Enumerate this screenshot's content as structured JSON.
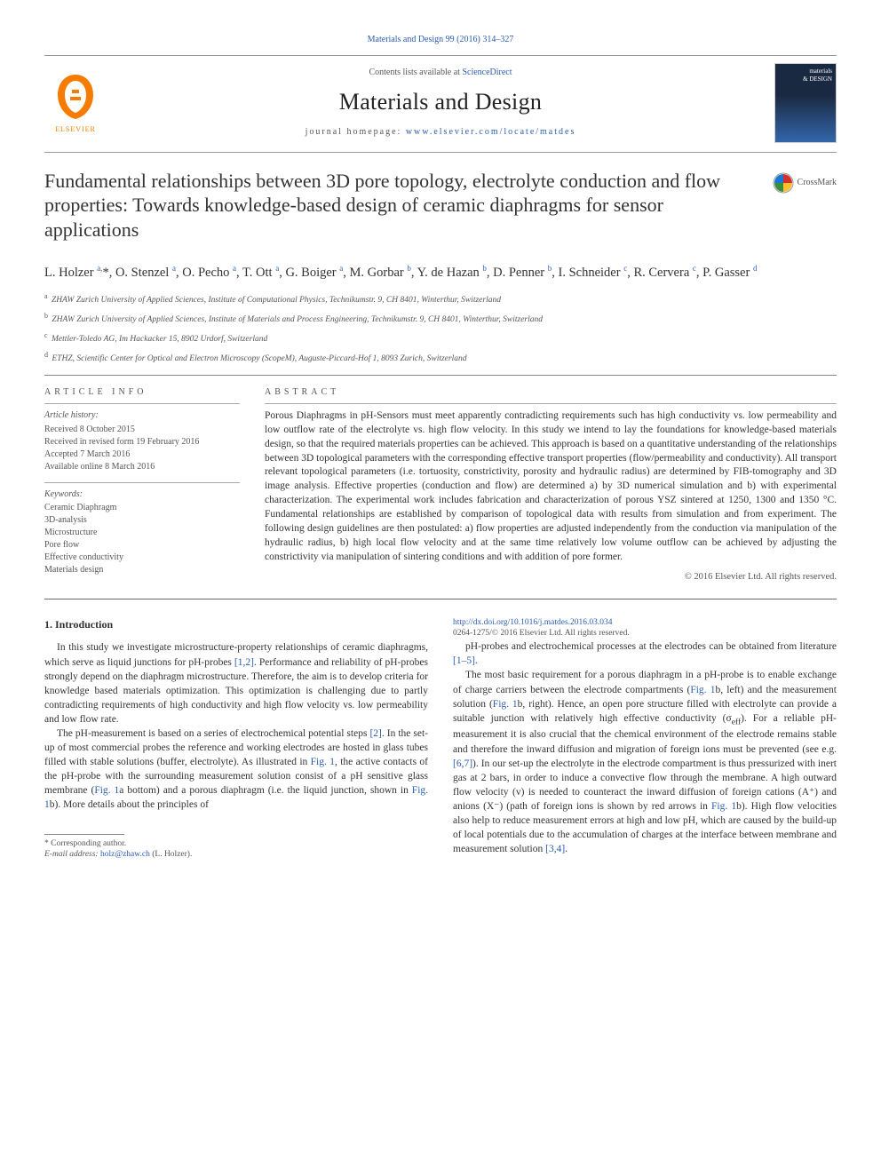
{
  "top_link": "Materials and Design 99 (2016) 314–327",
  "header": {
    "contents_prefix": "Contents lists available at ",
    "contents_link": "ScienceDirect",
    "journal": "Materials and Design",
    "homepage_prefix": "journal homepage: ",
    "homepage_url": "www.elsevier.com/locate/matdes",
    "elsevier": "ELSEVIER",
    "cover_label_top": "materials",
    "cover_label_bot": "& DESIGN"
  },
  "crossmark": "CrossMark",
  "title": "Fundamental relationships between 3D pore topology, electrolyte conduction and flow properties: Towards knowledge-based design of ceramic diaphragms for sensor applications",
  "authors_html": "L. Holzer <sup>a,</sup><span class='ast'>*</span>, O. Stenzel <sup>a</sup>, O. Pecho <sup>a</sup>, T. Ott <sup>a</sup>, G. Boiger <sup>a</sup>, M. Gorbar <sup>b</sup>, Y. de Hazan <sup>b</sup>, D. Penner <sup>b</sup>, I. Schneider <sup>c</sup>, R. Cervera <sup>c</sup>, P. Gasser <sup>d</sup>",
  "affiliations": [
    {
      "sup": "a",
      "text": "ZHAW Zurich University of Applied Sciences, Institute of Computational Physics, Technikumstr. 9, CH 8401, Winterthur, Switzerland"
    },
    {
      "sup": "b",
      "text": "ZHAW Zurich University of Applied Sciences, Institute of Materials and Process Engineering, Technikumstr. 9, CH 8401, Winterthur, Switzerland"
    },
    {
      "sup": "c",
      "text": "Mettler-Toledo AG, Im Hackacker 15, 8902 Urdorf, Switzerland"
    },
    {
      "sup": "d",
      "text": "ETHZ, Scientific Center for Optical and Electron Microscopy (ScopeM), Auguste-Piccard-Hof 1, 8093 Zurich, Switzerland"
    }
  ],
  "article_info": {
    "head": "article info",
    "history_label": "Article history:",
    "history": [
      "Received 8 October 2015",
      "Received in revised form 19 February 2016",
      "Accepted 7 March 2016",
      "Available online 8 March 2016"
    ],
    "keywords_label": "Keywords:",
    "keywords": [
      "Ceramic Diaphragm",
      "3D-analysis",
      "Microstructure",
      "Pore flow",
      "Effective conductivity",
      "Materials design"
    ]
  },
  "abstract": {
    "head": "abstract",
    "text": "Porous Diaphragms in pH-Sensors must meet apparently contradicting requirements such has high conductivity vs. low permeability and low outflow rate of the electrolyte vs. high flow velocity. In this study we intend to lay the foundations for knowledge-based materials design, so that the required materials properties can be achieved. This approach is based on a quantitative understanding of the relationships between 3D topological parameters with the corresponding effective transport properties (flow/permeability and conductivity). All transport relevant topological parameters (i.e. tortuosity, constrictivity, porosity and hydraulic radius) are determined by FIB-tomography and 3D image analysis. Effective properties (conduction and flow) are determined a) by 3D numerical simulation and b) with experimental characterization. The experimental work includes fabrication and characterization of porous YSZ sintered at 1250, 1300 and 1350 °C. Fundamental relationships are established by comparison of topological data with results from simulation and from experiment. The following design guidelines are then postulated: a) flow properties are adjusted independently from the conduction via manipulation of the hydraulic radius, b) high local flow velocity and at the same time relatively low volume outflow can be achieved by adjusting the constrictivity via manipulation of sintering conditions and with addition of pore former.",
    "copyright": "© 2016 Elsevier Ltd. All rights reserved."
  },
  "body": {
    "section1_title": "1. Introduction",
    "p1_a": "In this study we investigate microstructure-property relationships of ceramic diaphragms, which serve as liquid junctions for pH-probes ",
    "p1_ref1": "[1,2]",
    "p1_b": ". Performance and reliability of pH-probes strongly depend on the diaphragm microstructure. Therefore, the aim is to develop criteria for knowledge based materials optimization. This optimization is challenging due to partly contradicting requirements of high conductivity and high flow velocity vs. low permeability and low flow rate.",
    "p2_a": "The pH-measurement is based on a series of electrochemical potential steps ",
    "p2_ref1": "[2]",
    "p2_b": ". In the set-up of most commercial probes the reference and working electrodes are hosted in glass tubes filled with stable solutions (buffer, electrolyte). As illustrated in ",
    "p2_fig1": "Fig. 1",
    "p2_c": ", the active contacts of the pH-probe with the surrounding measurement solution consist of a pH sensitive glass membrane (",
    "p2_fig1a": "Fig. 1",
    "p2_d": "a bottom) and a porous diaphragm (i.e. the liquid junction, shown in ",
    "p2_fig1b": "Fig. 1",
    "p2_e": "b). More details about the principles of ",
    "p3_a": "pH-probes and electrochemical processes at the electrodes can be obtained from literature ",
    "p3_ref1": "[1–5]",
    "p3_b": ".",
    "p4_a": "The most basic requirement for a porous diaphragm in a pH-probe is to enable exchange of charge carriers between the electrode compartments (",
    "p4_fig1": "Fig. 1",
    "p4_b": "b, left) and the measurement solution (",
    "p4_fig2": "Fig. 1",
    "p4_c": "b, right). Hence, an open pore structure filled with electrolyte can provide a suitable junction with relatively high effective conductivity (σ",
    "p4_sub": "eff",
    "p4_d": "). For a reliable pH-measurement it is also crucial that the chemical environment of the electrode remains stable and therefore the inward diffusion and migration of foreign ions must be prevented (see e.g. ",
    "p4_ref1": "[6,7]",
    "p4_e": "). In our set-up the electrolyte in the electrode compartment is thus pressurized with inert gas at 2 bars, in order to induce a convective flow through the membrane. A high outward flow velocity (v) is needed to counteract the inward diffusion of foreign cations (A⁺) and anions (X⁻) (path of foreign ions is shown by red arrows in ",
    "p4_fig3": "Fig. 1",
    "p4_f": "b). High flow velocities also help to reduce measurement errors at high and low pH, which are caused by the build-up of local potentials due to the accumulation of charges at the interface between membrane and measurement solution ",
    "p4_ref2": "[3,4]",
    "p4_g": "."
  },
  "footnote": {
    "label": "* Corresponding author.",
    "email_label": "E-mail address: ",
    "email": "holz@zhaw.ch",
    "email_suffix": " (L. Holzer)."
  },
  "doi": {
    "url": "http://dx.doi.org/10.1016/j.matdes.2016.03.034",
    "issn": "0264-1275/© 2016 Elsevier Ltd. All rights reserved."
  },
  "colors": {
    "link": "#2a5db0",
    "text": "#333333",
    "muted": "#555555",
    "elsevier_orange": "#f57c00"
  }
}
